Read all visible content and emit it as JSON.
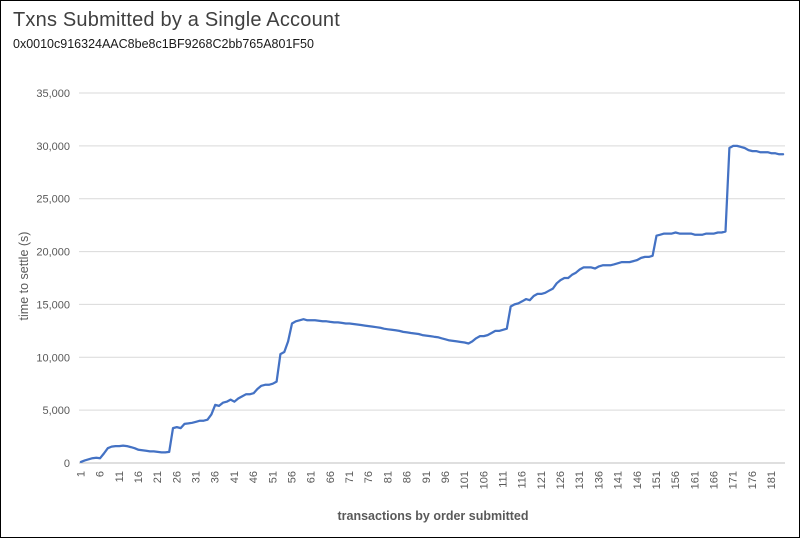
{
  "header": {
    "title": "Txns Submitted by a Single Account",
    "subtitle": "0x0010c916324AAC8be8c1BF9268C2bb765A801F50"
  },
  "chart_data": {
    "type": "line",
    "title": "Txns Submitted by a Single Account",
    "subtitle": "0x0010c916324AAC8be8c1BF9268C2bb765A801F50",
    "xlabel": "transactions by order submitted",
    "ylabel": "time to settle  (s)",
    "ylim": [
      0,
      35000
    ],
    "y_tick_step": 5000,
    "y_ticks": [
      "0",
      "5,000",
      "10,000",
      "15,000",
      "20,000",
      "25,000",
      "30,000",
      "35,000"
    ],
    "x_ticks": [
      1,
      6,
      11,
      16,
      21,
      26,
      31,
      36,
      41,
      46,
      51,
      56,
      61,
      66,
      71,
      76,
      81,
      86,
      91,
      96,
      101,
      106,
      111,
      116,
      121,
      126,
      131,
      136,
      141,
      146,
      151,
      156,
      161,
      166,
      171,
      176,
      181
    ],
    "x_range": [
      1,
      184
    ],
    "grid": "horizontal",
    "legend": "none",
    "line_color": "#4472C4",
    "values": [
      100,
      250,
      350,
      450,
      500,
      450,
      900,
      1400,
      1550,
      1600,
      1600,
      1650,
      1600,
      1500,
      1400,
      1250,
      1200,
      1150,
      1100,
      1100,
      1050,
      1000,
      1000,
      1050,
      3300,
      3400,
      3300,
      3700,
      3750,
      3800,
      3900,
      4000,
      4000,
      4100,
      4600,
      5500,
      5400,
      5700,
      5800,
      6000,
      5800,
      6100,
      6300,
      6500,
      6500,
      6600,
      7000,
      7300,
      7400,
      7400,
      7500,
      7700,
      10300,
      10500,
      11500,
      13200,
      13400,
      13500,
      13600,
      13500,
      13500,
      13500,
      13450,
      13400,
      13400,
      13350,
      13300,
      13300,
      13250,
      13200,
      13200,
      13150,
      13100,
      13050,
      13000,
      12950,
      12900,
      12850,
      12800,
      12700,
      12650,
      12600,
      12550,
      12500,
      12400,
      12350,
      12300,
      12250,
      12200,
      12100,
      12050,
      12000,
      11950,
      11900,
      11800,
      11700,
      11600,
      11550,
      11500,
      11450,
      11400,
      11300,
      11500,
      11800,
      12000,
      12000,
      12100,
      12300,
      12500,
      12500,
      12600,
      12700,
      14800,
      15000,
      15100,
      15300,
      15500,
      15400,
      15800,
      16000,
      16000,
      16100,
      16300,
      16500,
      17000,
      17300,
      17500,
      17500,
      17800,
      18000,
      18300,
      18500,
      18500,
      18500,
      18400,
      18600,
      18700,
      18700,
      18700,
      18800,
      18900,
      19000,
      19000,
      19000,
      19100,
      19200,
      19400,
      19500,
      19500,
      19600,
      21500,
      21600,
      21700,
      21700,
      21700,
      21800,
      21700,
      21700,
      21700,
      21700,
      21600,
      21600,
      21600,
      21700,
      21700,
      21700,
      21800,
      21800,
      21900,
      29800,
      30000,
      30000,
      29900,
      29800,
      29600,
      29500,
      29500,
      29400,
      29400,
      29400,
      29300,
      29300,
      29200,
      29200
    ]
  }
}
